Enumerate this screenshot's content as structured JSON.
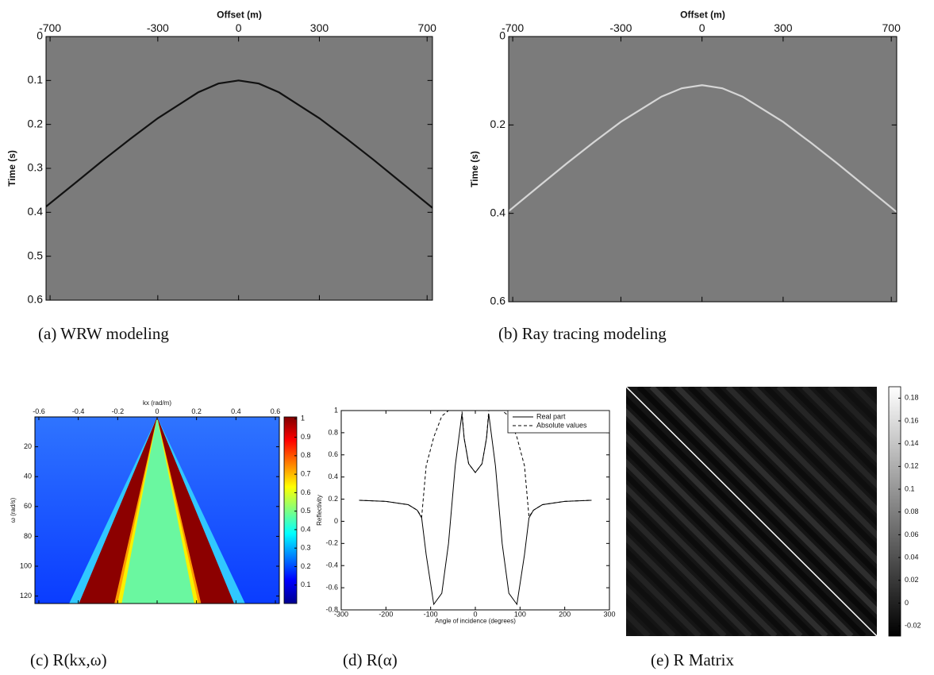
{
  "chart_data": [
    {
      "type": "line",
      "caption": "(a) WRW modeling",
      "xlabel": "Offset (m)",
      "ylabel": "Time (s)",
      "xaxis": "top",
      "yreverse": true,
      "background": "#7b7b7b",
      "xlim": [
        -715,
        720
      ],
      "xticks": [
        -700,
        -300,
        0,
        300,
        700
      ],
      "ylim": [
        0,
        0.6
      ],
      "yticks": [
        0,
        0.1,
        0.2,
        0.3,
        0.4,
        0.5,
        0.6
      ],
      "x": [
        -715,
        -600,
        -500,
        -400,
        -300,
        -150,
        -75,
        0,
        75,
        150,
        300,
        400,
        500,
        600,
        720
      ],
      "series": [
        {
          "color": "#111111",
          "linestyle": "solid",
          "values": [
            0.387,
            0.33,
            0.28,
            0.232,
            0.186,
            0.127,
            0.107,
            0.1,
            0.107,
            0.127,
            0.186,
            0.232,
            0.28,
            0.33,
            0.39
          ]
        }
      ]
    },
    {
      "type": "line",
      "caption": "(b) Ray tracing modeling",
      "xlabel": "Offset (m)",
      "ylabel": "Time (s)",
      "xaxis": "top",
      "yreverse": true,
      "background": "#7b7b7b",
      "xlim": [
        -715,
        720
      ],
      "xticks": [
        -700,
        -300,
        0,
        300,
        700
      ],
      "ylim": [
        0,
        0.6
      ],
      "yticks": [
        0,
        0.2,
        0.4,
        0.6
      ],
      "x": [
        -715,
        -600,
        -500,
        -400,
        -300,
        -150,
        -75,
        0,
        75,
        150,
        300,
        400,
        500,
        600,
        720
      ],
      "series": [
        {
          "color": "#d6d6d6",
          "linestyle": "solid",
          "values": [
            0.395,
            0.337,
            0.287,
            0.239,
            0.193,
            0.136,
            0.117,
            0.11,
            0.117,
            0.136,
            0.193,
            0.239,
            0.287,
            0.337,
            0.397
          ]
        }
      ]
    },
    {
      "type": "heatmap",
      "caption": "(c) R(kx,ω)",
      "xlabel": "kx (rad/m)",
      "ylabel": "ω (rad/s)",
      "xaxis": "top",
      "yreverse": true,
      "xlim": [
        -0.62,
        0.62
      ],
      "xticks": [
        -0.6,
        -0.4,
        -0.2,
        0,
        0.2,
        0.4,
        0.6
      ],
      "ylim": [
        0,
        125
      ],
      "yticks": [
        20,
        40,
        60,
        80,
        100,
        120
      ],
      "colorbar": {
        "colormap": "jet",
        "clim": [
          0,
          1.01
        ],
        "ticks": [
          0.1,
          0.2,
          0.3,
          0.4,
          0.5,
          0.6,
          0.7,
          0.8,
          0.9,
          1
        ]
      }
    },
    {
      "type": "line",
      "caption": "(d) R(α)",
      "xlabel": "Angle of incidence (degrees)",
      "ylabel": "Reflectivity",
      "xaxis": "bottom",
      "yreverse": false,
      "legend": "upper right",
      "xlim": [
        -300,
        300
      ],
      "xticks": [
        -300,
        -200,
        -100,
        0,
        100,
        200,
        300
      ],
      "ylim": [
        -0.8,
        1
      ],
      "yticks": [
        -0.8,
        -0.6,
        -0.4,
        -0.2,
        0,
        0.2,
        0.4,
        0.6,
        0.8,
        1
      ],
      "x": [
        -260,
        -200,
        -150,
        -130,
        -120,
        -110,
        -93,
        -75,
        -60,
        -45,
        -30,
        -25,
        -15,
        0,
        15,
        25,
        30,
        45,
        60,
        75,
        93,
        110,
        120,
        130,
        150,
        200,
        260
      ],
      "series": [
        {
          "name": "Real part",
          "color": "#000000",
          "linestyle": "solid",
          "values": [
            0.19,
            0.18,
            0.15,
            0.1,
            0.03,
            -0.3,
            -0.75,
            -0.65,
            -0.2,
            0.5,
            0.97,
            0.75,
            0.52,
            0.44,
            0.52,
            0.75,
            0.97,
            0.5,
            -0.2,
            -0.65,
            -0.75,
            -0.3,
            0.03,
            0.1,
            0.15,
            0.18,
            0.19
          ]
        },
        {
          "name": "Absolute values",
          "color": "#000000",
          "linestyle": "dashed",
          "values": [
            0.19,
            0.18,
            0.15,
            0.1,
            0.04,
            0.5,
            0.76,
            0.95,
            1,
            1,
            1,
            0.75,
            0.52,
            0.44,
            0.52,
            0.75,
            1,
            1,
            1,
            0.95,
            0.76,
            0.5,
            0.04,
            0.1,
            0.15,
            0.18,
            0.19
          ]
        }
      ]
    },
    {
      "type": "heatmap",
      "caption": "(e) R Matrix",
      "colorbar": {
        "colormap": "gray",
        "clim": [
          -0.029,
          0.19
        ],
        "ticks": [
          -0.02,
          0,
          0.02,
          0.04,
          0.06,
          0.08,
          0.1,
          0.12,
          0.14,
          0.16,
          0.18
        ]
      }
    }
  ]
}
